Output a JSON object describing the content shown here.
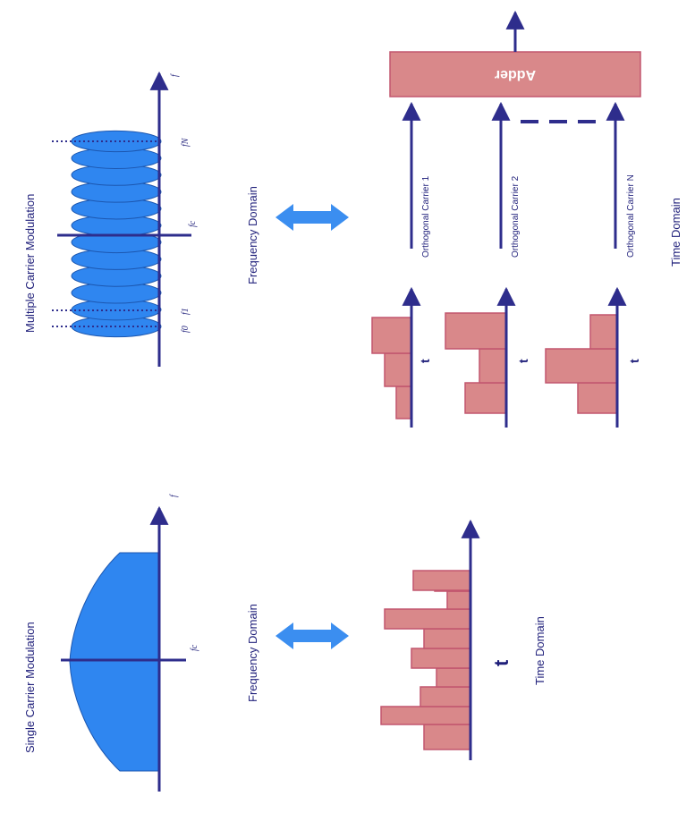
{
  "colors": {
    "axis": "#2e2d8c",
    "spectrum_fill": "#2f86f0",
    "spectrum_stroke": "#1c57b0",
    "bar_fill": "#d9888a",
    "bar_stroke": "#c2566e",
    "arrow": "#3b8ef0"
  },
  "single": {
    "title": "Single Carrier Modulation",
    "freq_domain": "Frequency Domain",
    "time_domain": "Time Domain",
    "axis_f": "f",
    "fc": "fc",
    "t": "t"
  },
  "multi": {
    "title": "Multiple Carrier Modulation",
    "freq_domain": "Frequency Domain",
    "time_domain": "Time Domain",
    "axis_f": "f",
    "f0": "f0",
    "f1": "f1",
    "fc": "fc",
    "fN": "fN",
    "carriers": [
      "Orthogonal Carrier 1",
      "Orthogonal Carrier 2",
      "Orthogonal Carrier N"
    ],
    "t_labels": [
      "t",
      "t",
      "t"
    ],
    "adder": "Adder"
  }
}
